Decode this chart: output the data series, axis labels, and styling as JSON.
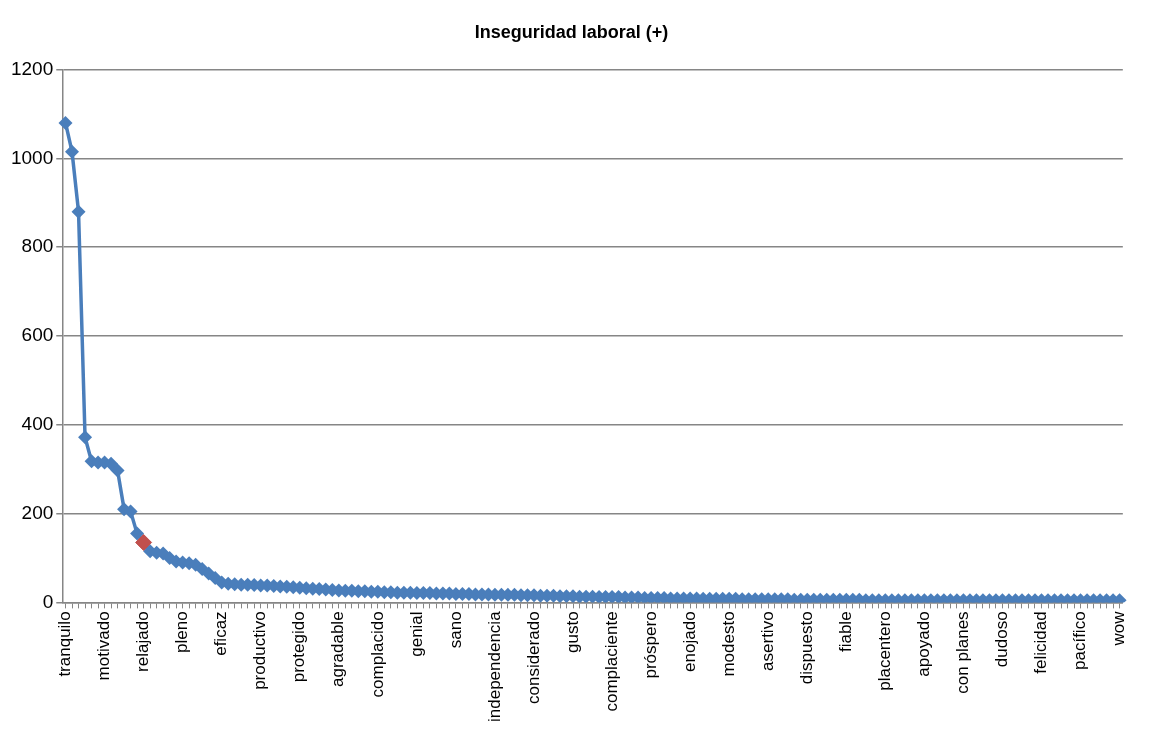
{
  "chart_data": {
    "type": "line",
    "title": "Inseguridad laboral (+)",
    "categories": [
      "tranquilo",
      null,
      null,
      null,
      null,
      null,
      "motivado",
      null,
      null,
      null,
      null,
      null,
      "relajado",
      null,
      null,
      null,
      null,
      null,
      "pleno",
      null,
      null,
      null,
      null,
      null,
      "eficaz",
      null,
      null,
      null,
      null,
      null,
      "productivo",
      null,
      null,
      null,
      null,
      null,
      "protegido",
      null,
      null,
      null,
      null,
      null,
      "agradable",
      null,
      null,
      null,
      null,
      null,
      "complacido",
      null,
      null,
      null,
      null,
      null,
      "genial",
      null,
      null,
      null,
      null,
      null,
      "sano",
      null,
      null,
      null,
      null,
      null,
      "independencia",
      null,
      null,
      null,
      null,
      null,
      "considerado",
      null,
      null,
      null,
      null,
      null,
      "gusto",
      null,
      null,
      null,
      null,
      null,
      "complaciente",
      null,
      null,
      null,
      null,
      null,
      "próspero",
      null,
      null,
      null,
      null,
      null,
      "enojado",
      null,
      null,
      null,
      null,
      null,
      "modesto",
      null,
      null,
      null,
      null,
      null,
      "asertivo",
      null,
      null,
      null,
      null,
      null,
      "dispuesto",
      null,
      null,
      null,
      null,
      null,
      "fiable",
      null,
      null,
      null,
      null,
      null,
      "placentero",
      null,
      null,
      null,
      null,
      null,
      "apoyado",
      null,
      null,
      null,
      null,
      null,
      "con planes",
      null,
      null,
      null,
      null,
      null,
      "dudoso",
      null,
      null,
      null,
      null,
      null,
      "felicidad",
      null,
      null,
      null,
      null,
      null,
      "pacífico",
      null,
      null,
      null,
      null,
      null,
      "wow"
    ],
    "series": [
      {
        "color": "#4a7ebb",
        "values": [
          1080,
          1015,
          880,
          372,
          318,
          315,
          315,
          312,
          297,
          210,
          205,
          155,
          135,
          115,
          112,
          110,
          100,
          92,
          90,
          88,
          85,
          75,
          65,
          55,
          45,
          42,
          41,
          40,
          40,
          39,
          38,
          38,
          37,
          36,
          35,
          34,
          33,
          32,
          31,
          30,
          29,
          28,
          27,
          26,
          26,
          25,
          25,
          24,
          24,
          23,
          23,
          22,
          22,
          22,
          21,
          21,
          21,
          20,
          20,
          20,
          19,
          19,
          19,
          18,
          18,
          18,
          17,
          17,
          17,
          17,
          16,
          16,
          16,
          15,
          15,
          15,
          14,
          14,
          14,
          13,
          13,
          13,
          12,
          12,
          12,
          12,
          11,
          11,
          11,
          10,
          10,
          10,
          10,
          9,
          9,
          9,
          9,
          9,
          8,
          8,
          8,
          8,
          8,
          8,
          7,
          7,
          7,
          7,
          7,
          7,
          7,
          7,
          6,
          6,
          6,
          6,
          6,
          6,
          6,
          6,
          6,
          6,
          6,
          5,
          5,
          5,
          5,
          5,
          5,
          5,
          5,
          5,
          5,
          5,
          5,
          5,
          5,
          5,
          5,
          5,
          5,
          5,
          5,
          5,
          5,
          5,
          5,
          5,
          5,
          5,
          5,
          5,
          5,
          5,
          5,
          5,
          5,
          5,
          5,
          5,
          5,
          5,
          5
        ]
      },
      {
        "type": "scatter",
        "color": "#c0504d",
        "x": [
          "relajado"
        ],
        "values": [
          135
        ],
        "marker": "diamond"
      }
    ],
    "ylim": [
      0,
      1200
    ],
    "yticks": [
      0,
      200,
      400,
      600,
      800,
      1000,
      1200
    ],
    "grid": "y",
    "legend": false,
    "marker": "diamond",
    "line_style": "solid"
  }
}
